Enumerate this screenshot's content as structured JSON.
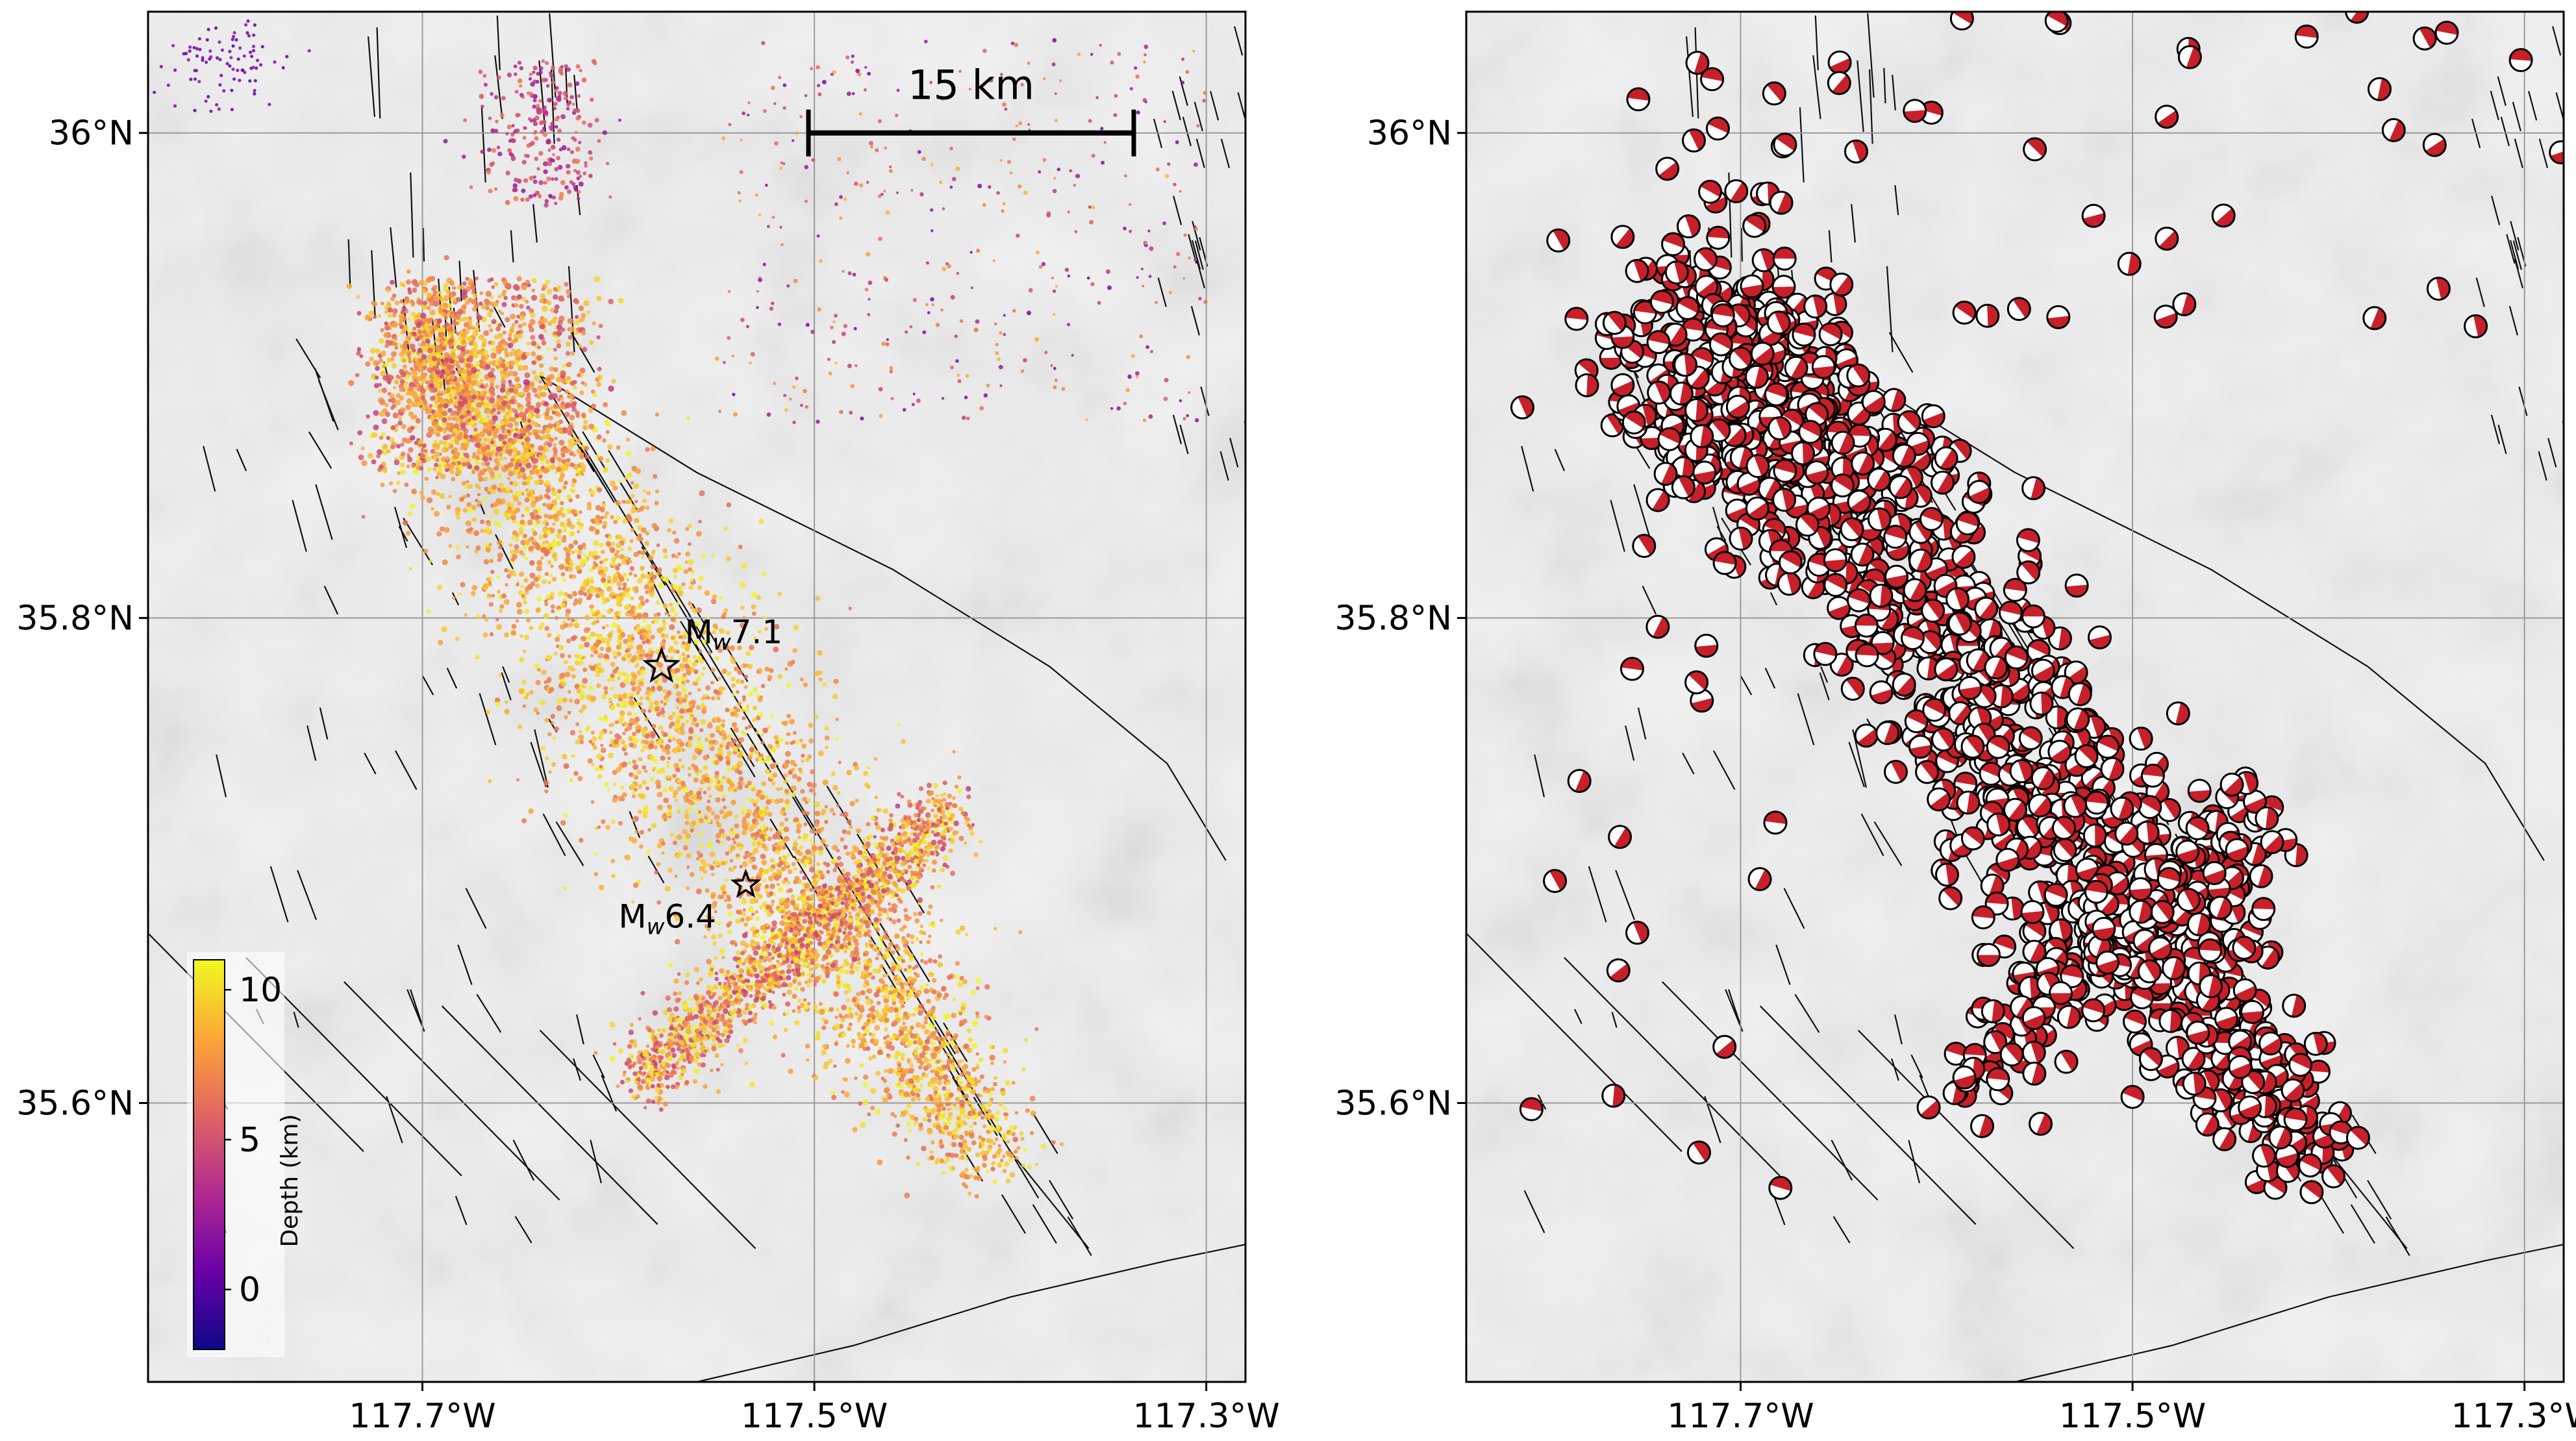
{
  "figure": {
    "panels": [
      {
        "id": "depth",
        "lon_range": [
          -117.84,
          -117.28
        ],
        "lat_range": [
          35.485,
          36.05
        ],
        "lon_ticks": [
          {
            "value": -117.7,
            "label": "117.7°W"
          },
          {
            "value": -117.5,
            "label": "117.5°W"
          },
          {
            "value": -117.3,
            "label": "117.3°W"
          }
        ],
        "lat_ticks": [
          {
            "value": 36.0,
            "label": "36°N"
          },
          {
            "value": 35.8,
            "label": "35.8°N"
          },
          {
            "value": 35.6,
            "label": "35.6°N"
          }
        ],
        "scale_bar": {
          "label": "15 km",
          "from_lon": -117.503,
          "to_lon": -117.337,
          "lat": 36.0
        },
        "mainshocks": [
          {
            "lon": -117.578,
            "lat": 35.78,
            "label_prefix": "M",
            "label_sub": "w",
            "label_value": "7.1"
          },
          {
            "lon": -117.535,
            "lat": 35.69,
            "label_prefix": "M",
            "label_sub": "w",
            "label_value": "6.4"
          }
        ],
        "colorbar": {
          "title": "Depth (km)",
          "range": [
            -2,
            11
          ],
          "ticks": [
            {
              "value": 0,
              "label": "0"
            },
            {
              "value": 5,
              "label": "5"
            },
            {
              "value": 10,
              "label": "10"
            }
          ],
          "colormap": [
            "#0d0887",
            "#6a00a8",
            "#b12a90",
            "#e16462",
            "#fca636",
            "#f0f921"
          ]
        }
      },
      {
        "id": "focal",
        "lon_range": [
          -117.84,
          -117.28
        ],
        "lat_range": [
          35.485,
          36.05
        ],
        "lon_ticks": [
          {
            "value": -117.7,
            "label": "117.7°W"
          },
          {
            "value": -117.5,
            "label": "117.5°W"
          },
          {
            "value": -117.3,
            "label": "117.3°W"
          }
        ],
        "lat_ticks": [
          {
            "value": 36.0,
            "label": "36°N"
          },
          {
            "value": 35.8,
            "label": "35.8°N"
          },
          {
            "value": 35.6,
            "label": "35.6°N"
          }
        ],
        "beachball_colors": {
          "compressional": "#c8202a",
          "dilatational": "#ffffff",
          "outline": "#000000"
        }
      }
    ],
    "rupture_trend": [
      {
        "lon": -117.7,
        "lat": 35.92
      },
      {
        "lon": -117.66,
        "lat": 35.87
      },
      {
        "lon": -117.6,
        "lat": 35.8
      },
      {
        "lon": -117.55,
        "lat": 35.73
      },
      {
        "lon": -117.48,
        "lat": 35.66
      },
      {
        "lon": -117.41,
        "lat": 35.58
      }
    ],
    "cross_fault_trend": [
      {
        "lon": -117.59,
        "lat": 35.61
      },
      {
        "lon": -117.43,
        "lat": 35.72
      }
    ],
    "map_colors": {
      "background": "#f1f1f1",
      "relief": "#e2e2e2",
      "fault": "#111111",
      "grid": "#9a9a9a"
    }
  }
}
